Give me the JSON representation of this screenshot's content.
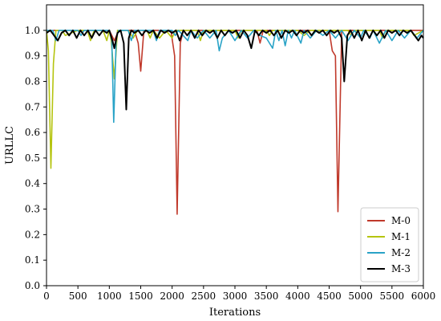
{
  "chart_data": {
    "type": "line",
    "title": "",
    "xlabel": "Iterations",
    "ylabel": "URLLC",
    "xlim": [
      0,
      6000
    ],
    "ylim": [
      0,
      1.1
    ],
    "xticks": [
      0,
      500,
      1000,
      1500,
      2000,
      2500,
      3000,
      3500,
      4000,
      4500,
      5000,
      5500,
      6000
    ],
    "yticks": [
      0.0,
      0.1,
      0.2,
      0.3,
      0.4,
      0.5,
      0.6,
      0.7,
      0.8,
      0.9,
      1.0
    ],
    "ytick_labels": [
      "0.0",
      "0.1",
      "0.2",
      "0.3",
      "0.4",
      "0.5",
      "0.6",
      "0.7",
      "0.8",
      "0.9",
      "1.0"
    ],
    "grid": false,
    "legend_position": "bottom-right",
    "series": [
      {
        "name": "M-0",
        "color": "#c0392b",
        "points": [
          [
            0,
            1.0
          ],
          [
            150,
            1.0
          ],
          [
            300,
            1.0
          ],
          [
            900,
            1.0
          ],
          [
            1000,
            1.0
          ],
          [
            1080,
            0.96
          ],
          [
            1150,
            1.0
          ],
          [
            1400,
            1.0
          ],
          [
            1460,
            0.95
          ],
          [
            1500,
            0.84
          ],
          [
            1550,
            1.0
          ],
          [
            1980,
            1.0
          ],
          [
            2040,
            0.9
          ],
          [
            2080,
            0.28
          ],
          [
            2130,
            0.95
          ],
          [
            2180,
            1.0
          ],
          [
            3350,
            1.0
          ],
          [
            3400,
            0.95
          ],
          [
            3450,
            1.0
          ],
          [
            4500,
            1.0
          ],
          [
            4550,
            0.92
          ],
          [
            4600,
            0.9
          ],
          [
            4640,
            0.29
          ],
          [
            4700,
            1.0
          ],
          [
            6000,
            1.0
          ]
        ]
      },
      {
        "name": "M-1",
        "color": "#b5c40f",
        "points": [
          [
            0,
            1.0
          ],
          [
            30,
            0.92
          ],
          [
            70,
            0.46
          ],
          [
            110,
            0.87
          ],
          [
            150,
            1.0
          ],
          [
            250,
            1.0
          ],
          [
            300,
            0.98
          ],
          [
            500,
            1.0
          ],
          [
            650,
            1.0
          ],
          [
            700,
            0.96
          ],
          [
            760,
            1.0
          ],
          [
            900,
            1.0
          ],
          [
            960,
            0.96
          ],
          [
            1000,
            1.0
          ],
          [
            1030,
            0.96
          ],
          [
            1080,
            0.81
          ],
          [
            1130,
            1.0
          ],
          [
            1300,
            1.0
          ],
          [
            1380,
            0.97
          ],
          [
            1450,
            1.0
          ],
          [
            1600,
            1.0
          ],
          [
            1650,
            0.97
          ],
          [
            1700,
            1.0
          ],
          [
            1800,
            0.97
          ],
          [
            1900,
            1.0
          ],
          [
            2000,
            0.97
          ],
          [
            2050,
            1.0
          ],
          [
            2400,
            1.0
          ],
          [
            2450,
            0.96
          ],
          [
            2500,
            1.0
          ],
          [
            3000,
            1.0
          ],
          [
            3050,
            0.97
          ],
          [
            3100,
            1.0
          ],
          [
            3500,
            1.0
          ],
          [
            3550,
            0.98
          ],
          [
            3600,
            1.0
          ],
          [
            4000,
            1.0
          ],
          [
            4100,
            0.98
          ],
          [
            4200,
            1.0
          ],
          [
            4800,
            1.0
          ],
          [
            4850,
            0.98
          ],
          [
            4900,
            1.0
          ],
          [
            5300,
            1.0
          ],
          [
            5350,
            0.97
          ],
          [
            5400,
            1.0
          ],
          [
            5800,
            1.0
          ],
          [
            5850,
            0.98
          ],
          [
            6000,
            1.0
          ]
        ]
      },
      {
        "name": "M-2",
        "color": "#29a3c7",
        "points": [
          [
            0,
            1.0
          ],
          [
            100,
            1.0
          ],
          [
            150,
            0.96
          ],
          [
            200,
            1.0
          ],
          [
            500,
            1.0
          ],
          [
            550,
            0.98
          ],
          [
            600,
            1.0
          ],
          [
            1000,
            1.0
          ],
          [
            1040,
            0.96
          ],
          [
            1070,
            0.64
          ],
          [
            1110,
            0.97
          ],
          [
            1150,
            1.0
          ],
          [
            1300,
            1.0
          ],
          [
            1350,
            0.96
          ],
          [
            1400,
            1.0
          ],
          [
            1700,
            1.0
          ],
          [
            1750,
            0.96
          ],
          [
            1800,
            1.0
          ],
          [
            2000,
            1.0
          ],
          [
            2050,
            0.98
          ],
          [
            2100,
            1.0
          ],
          [
            2250,
            0.96
          ],
          [
            2300,
            1.0
          ],
          [
            2400,
            0.97
          ],
          [
            2500,
            1.0
          ],
          [
            2600,
            0.97
          ],
          [
            2700,
            1.0
          ],
          [
            2750,
            0.92
          ],
          [
            2800,
            0.97
          ],
          [
            2900,
            1.0
          ],
          [
            3000,
            0.96
          ],
          [
            3100,
            1.0
          ],
          [
            3200,
            0.97
          ],
          [
            3300,
            1.0
          ],
          [
            3400,
            0.98
          ],
          [
            3500,
            0.97
          ],
          [
            3600,
            0.93
          ],
          [
            3650,
            1.0
          ],
          [
            3700,
            0.96
          ],
          [
            3750,
            1.0
          ],
          [
            3800,
            0.94
          ],
          [
            3850,
            1.0
          ],
          [
            3900,
            0.97
          ],
          [
            3950,
            1.0
          ],
          [
            4050,
            0.95
          ],
          [
            4100,
            1.0
          ],
          [
            4200,
            0.97
          ],
          [
            4300,
            1.0
          ],
          [
            4400,
            0.98
          ],
          [
            4500,
            1.0
          ],
          [
            4600,
            0.97
          ],
          [
            4700,
            1.0
          ],
          [
            4800,
            0.96
          ],
          [
            4900,
            1.0
          ],
          [
            5000,
            0.97
          ],
          [
            5050,
            1.0
          ],
          [
            5150,
            0.97
          ],
          [
            5200,
            1.0
          ],
          [
            5300,
            0.95
          ],
          [
            5400,
            1.0
          ],
          [
            5500,
            0.96
          ],
          [
            5600,
            1.0
          ],
          [
            5700,
            0.97
          ],
          [
            5800,
            1.0
          ],
          [
            5900,
            0.97
          ],
          [
            6000,
            1.0
          ]
        ]
      },
      {
        "name": "M-3",
        "color": "#000000",
        "points": [
          [
            0,
            0.99
          ],
          [
            60,
            1.0
          ],
          [
            120,
            0.98
          ],
          [
            180,
            0.96
          ],
          [
            240,
            0.99
          ],
          [
            300,
            1.0
          ],
          [
            360,
            0.98
          ],
          [
            420,
            1.0
          ],
          [
            480,
            0.97
          ],
          [
            540,
            1.0
          ],
          [
            600,
            0.98
          ],
          [
            660,
            1.0
          ],
          [
            720,
            0.97
          ],
          [
            780,
            1.0
          ],
          [
            840,
            0.98
          ],
          [
            900,
            1.0
          ],
          [
            960,
            0.99
          ],
          [
            1000,
            1.0
          ],
          [
            1050,
            0.96
          ],
          [
            1080,
            0.93
          ],
          [
            1130,
            0.99
          ],
          [
            1180,
            1.0
          ],
          [
            1230,
            0.95
          ],
          [
            1270,
            0.69
          ],
          [
            1310,
            0.97
          ],
          [
            1350,
            1.0
          ],
          [
            1400,
            0.99
          ],
          [
            1460,
            1.0
          ],
          [
            1520,
            0.98
          ],
          [
            1580,
            1.0
          ],
          [
            1640,
            0.99
          ],
          [
            1700,
            1.0
          ],
          [
            1760,
            0.97
          ],
          [
            1820,
            1.0
          ],
          [
            1880,
            0.99
          ],
          [
            1940,
            1.0
          ],
          [
            2000,
            0.99
          ],
          [
            2060,
            1.0
          ],
          [
            2120,
            0.96
          ],
          [
            2180,
            1.0
          ],
          [
            2240,
            0.98
          ],
          [
            2300,
            1.0
          ],
          [
            2360,
            0.97
          ],
          [
            2420,
            1.0
          ],
          [
            2480,
            0.98
          ],
          [
            2540,
            1.0
          ],
          [
            2600,
            0.99
          ],
          [
            2660,
            1.0
          ],
          [
            2720,
            0.97
          ],
          [
            2780,
            1.0
          ],
          [
            2840,
            0.98
          ],
          [
            2900,
            1.0
          ],
          [
            2960,
            0.99
          ],
          [
            3020,
            1.0
          ],
          [
            3080,
            0.97
          ],
          [
            3140,
            1.0
          ],
          [
            3200,
            0.98
          ],
          [
            3260,
            0.93
          ],
          [
            3320,
            1.0
          ],
          [
            3380,
            0.98
          ],
          [
            3440,
            1.0
          ],
          [
            3500,
            0.99
          ],
          [
            3560,
            1.0
          ],
          [
            3620,
            0.98
          ],
          [
            3680,
            1.0
          ],
          [
            3740,
            0.97
          ],
          [
            3800,
            1.0
          ],
          [
            3860,
            0.99
          ],
          [
            3920,
            1.0
          ],
          [
            3980,
            0.98
          ],
          [
            4040,
            1.0
          ],
          [
            4100,
            0.99
          ],
          [
            4160,
            1.0
          ],
          [
            4220,
            0.98
          ],
          [
            4280,
            1.0
          ],
          [
            4340,
            0.99
          ],
          [
            4400,
            1.0
          ],
          [
            4460,
            0.98
          ],
          [
            4520,
            1.0
          ],
          [
            4580,
            0.99
          ],
          [
            4640,
            1.0
          ],
          [
            4700,
            0.97
          ],
          [
            4740,
            0.8
          ],
          [
            4790,
            0.98
          ],
          [
            4840,
            1.0
          ],
          [
            4900,
            0.97
          ],
          [
            4960,
            1.0
          ],
          [
            5020,
            0.96
          ],
          [
            5080,
            1.0
          ],
          [
            5140,
            0.97
          ],
          [
            5200,
            1.0
          ],
          [
            5260,
            0.98
          ],
          [
            5320,
            1.0
          ],
          [
            5380,
            0.97
          ],
          [
            5440,
            1.0
          ],
          [
            5500,
            0.99
          ],
          [
            5560,
            1.0
          ],
          [
            5620,
            0.98
          ],
          [
            5680,
            1.0
          ],
          [
            5740,
            0.99
          ],
          [
            5800,
            1.0
          ],
          [
            5860,
            0.98
          ],
          [
            5920,
            0.96
          ],
          [
            5970,
            0.98
          ],
          [
            6000,
            0.97
          ]
        ]
      }
    ]
  }
}
